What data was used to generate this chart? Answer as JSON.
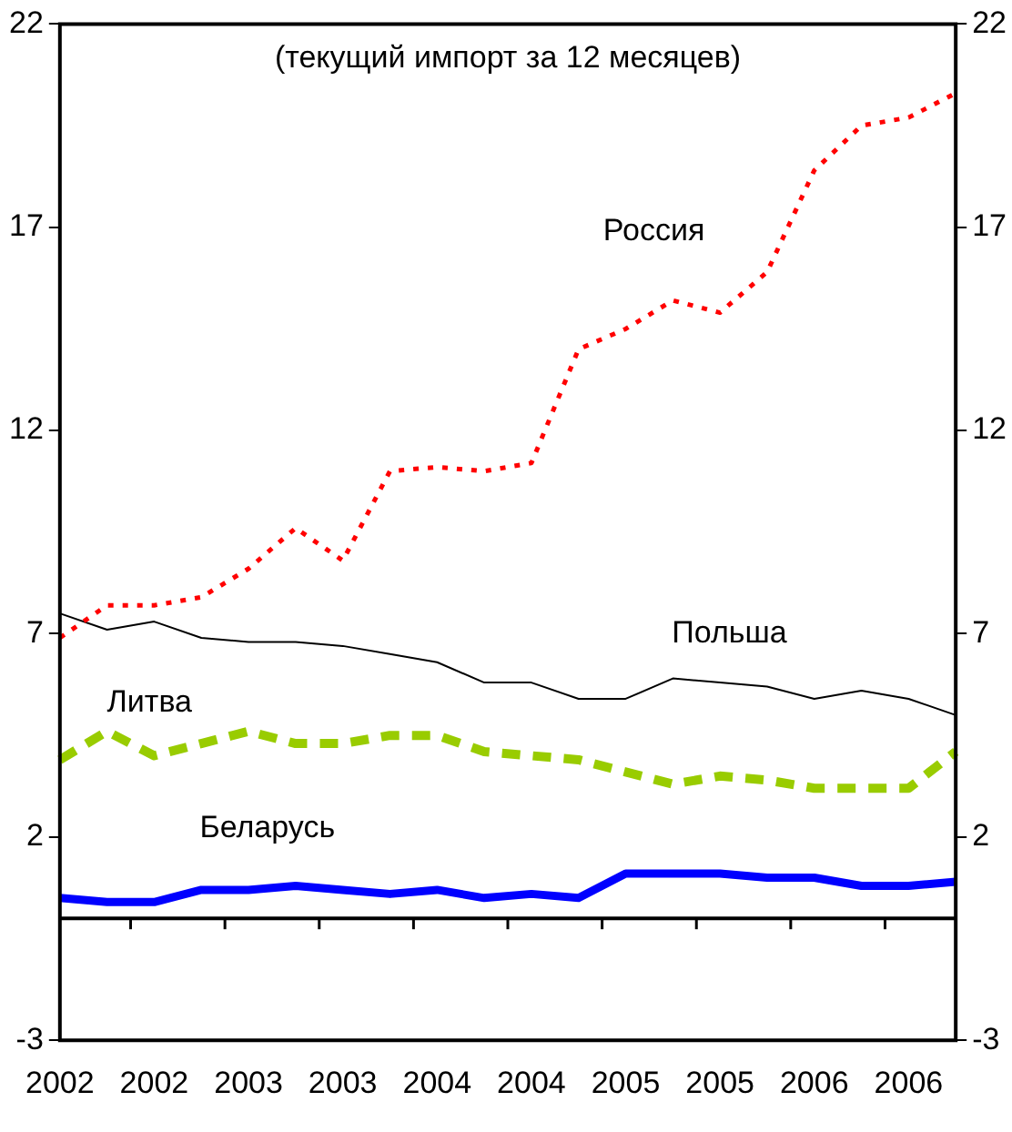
{
  "chart_data": {
    "type": "line",
    "subtitle": "(текущий импорт за 12 месяцев)",
    "categories": [
      "2002",
      null,
      "2002",
      null,
      "2003",
      null,
      "2003",
      null,
      "2004",
      null,
      "2004",
      null,
      "2005",
      null,
      "2005",
      null,
      "2006",
      null,
      "2006",
      null
    ],
    "series": [
      {
        "name": "Россия",
        "color": "#ff0000",
        "line_style": "dotted",
        "values": [
          6.9,
          7.7,
          7.7,
          7.9,
          8.6,
          9.6,
          8.8,
          11.0,
          11.1,
          11.0,
          11.2,
          14.0,
          14.5,
          15.2,
          14.9,
          15.9,
          18.4,
          19.5,
          19.7,
          20.3
        ]
      },
      {
        "name": "Польша",
        "color": "#000000",
        "line_style": "solid",
        "values": [
          7.5,
          7.1,
          7.3,
          6.9,
          6.8,
          6.8,
          6.7,
          6.5,
          6.3,
          5.8,
          5.8,
          5.4,
          5.4,
          5.9,
          5.8,
          5.7,
          5.4,
          5.6,
          5.4,
          5.0
        ]
      },
      {
        "name": "Литва",
        "color": "#99cc00",
        "line_style": "dashed",
        "values": [
          3.9,
          4.6,
          4.0,
          4.3,
          4.6,
          4.3,
          4.3,
          4.5,
          4.5,
          4.1,
          4.0,
          3.9,
          3.6,
          3.3,
          3.5,
          3.4,
          3.2,
          3.2,
          3.2,
          4.1
        ]
      },
      {
        "name": "Беларусь",
        "color": "#0000ff",
        "line_style": "solid",
        "values": [
          0.5,
          0.4,
          0.4,
          0.7,
          0.7,
          0.8,
          0.7,
          0.6,
          0.7,
          0.5,
          0.6,
          0.5,
          1.1,
          1.1,
          1.1,
          1.0,
          1.0,
          0.8,
          0.8,
          0.9
        ]
      }
    ],
    "ylim": [
      -3,
      22
    ],
    "yticks": [
      -3,
      2,
      7,
      12,
      17,
      22
    ],
    "y2lim": [
      -3,
      22
    ],
    "y2ticks": [
      -3,
      2,
      7,
      12,
      17,
      22
    ],
    "ref_lines": [
      {
        "axis": "y",
        "value": 0,
        "color": "#000000"
      }
    ],
    "grid": false,
    "legend": false,
    "marker": "none"
  }
}
